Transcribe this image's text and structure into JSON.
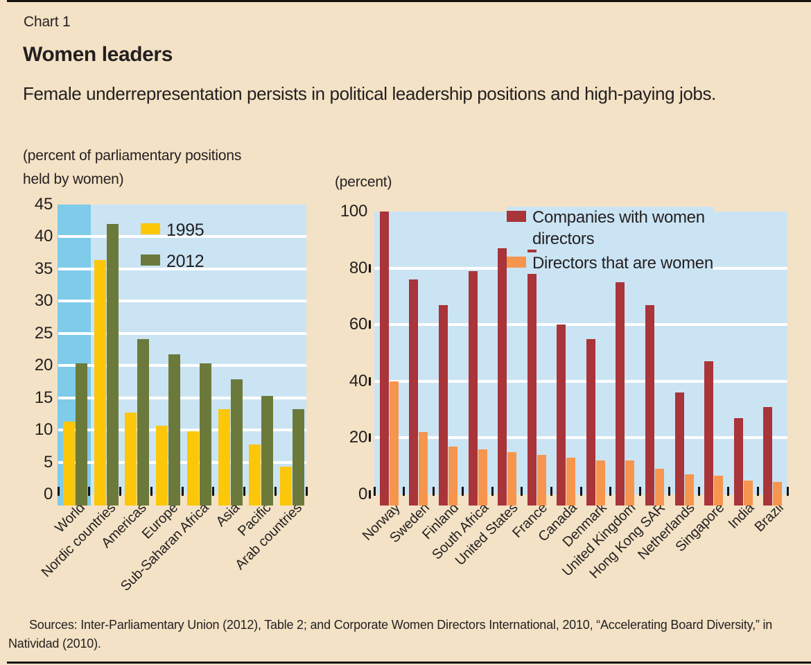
{
  "panel": {
    "kicker": "Chart 1",
    "title": "Women leaders",
    "subtitle": "Female underrepresentation persists in political leadership positions and high-paying jobs.",
    "source": "Sources: Inter-Parliamentary Union (2012), Table 2; and Corporate Women Directors International, 2010, “Accelerating Board Diversity,” in Natividad (2010)."
  },
  "colors": {
    "background": "#F3E2C5",
    "plot_background": "#CBE4F4",
    "highlight_band": "#7ECBEA",
    "gridline": "#FFFFFF",
    "tick": "#151111",
    "text": "#231F20"
  },
  "chart_data": [
    {
      "type": "bar",
      "title": "(percent of parliamentary positions held by women)",
      "categories": [
        "World",
        "Nordic countries",
        "Americas",
        "Europe",
        "Sub-Saharan Africa",
        "Asia",
        "Pacific",
        "Arab countries"
      ],
      "series": [
        {
          "name": "1995",
          "color": "#FBC708",
          "values": [
            11.3,
            36.4,
            12.7,
            10.7,
            9.8,
            13.2,
            7.7,
            4.3
          ]
        },
        {
          "name": "2012",
          "color": "#6B7A3A",
          "values": [
            20.3,
            42.0,
            24.1,
            21.7,
            20.4,
            17.9,
            15.3,
            13.2
          ]
        }
      ],
      "ylim": [
        0,
        45
      ],
      "ytick_step": 5,
      "grid": true,
      "legend_position": "top-left-inside",
      "highlight_category": "World"
    },
    {
      "type": "bar",
      "title": "(percent)",
      "categories": [
        "Norway",
        "Sweden",
        "Finland",
        "South Africa",
        "United States",
        "France",
        "Canada",
        "Denmark",
        "United Kingdom",
        "Hong Kong SAR",
        "Netherlands",
        "Singapore",
        "India",
        "Brazil"
      ],
      "series": [
        {
          "name": "Companies with women directors",
          "color": "#A93439",
          "values": [
            100,
            76,
            67,
            79,
            87,
            92,
            60,
            55,
            75,
            67,
            36,
            47,
            27,
            31
          ]
        },
        {
          "name": "Directors that are women",
          "color": "#F6954E",
          "values": [
            40,
            22,
            17,
            16,
            15,
            14,
            13,
            12,
            12,
            9,
            7,
            6.5,
            5,
            4.5
          ]
        }
      ],
      "ylim": [
        0,
        100
      ],
      "ytick_step": 20,
      "grid": true,
      "legend_position": "top-right-inside"
    }
  ]
}
